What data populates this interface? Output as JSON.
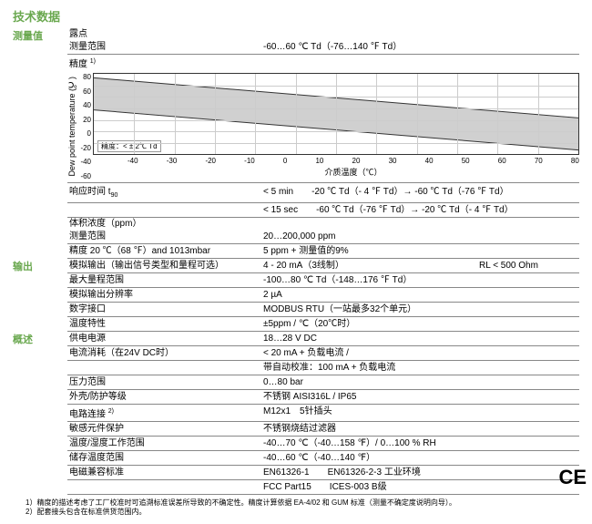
{
  "title": "技术数据",
  "sections": {
    "measure": {
      "header": "测量值",
      "dew_label": "露点",
      "rows": {
        "range": {
          "lbl": "测量范围",
          "val": "-60…60 ℃ Td（-76…140 ℉ Td）"
        },
        "accuracy": {
          "lbl": "精度 ",
          "sup": "1)"
        }
      },
      "resp_lbl": "响应时间 t",
      "resp_sub": "90",
      "resp_l1": "< 5 min　　-20 ℃ Td（- 4 ℉ Td）→ -60 ℃ Td（-76 ℉ Td）",
      "resp_l2": "< 15 sec　　-60 ℃ Td（-76 ℉ Td）→ -20 ℃ Td（- 4 ℉ Td）",
      "vol_lbl": "体积浓度（ppm）",
      "vol_range": {
        "lbl": "测量范围",
        "val": "20…200,000 ppm"
      },
      "vol_acc": {
        "lbl": "精度 20 ℃（68 ℉）and 1013mbar",
        "val": "5 ppm + 测量值的9%"
      }
    },
    "output": {
      "header": "输出",
      "rows": {
        "analog": {
          "lbl": "模拟输出（输出信号类型和量程可选）",
          "val": "4 - 20 mA（3线制）",
          "val2": "RL < 500 Ohm"
        },
        "maxfs": {
          "lbl": "最大量程范围",
          "val": "-100…80 ℃ Td（-148…176 ℉ Td）"
        },
        "res": {
          "lbl": "模拟输出分辨率",
          "val": "2 µA"
        },
        "digital": {
          "lbl": "数字接口",
          "val": "MODBUS RTU（一站最多32个单元）"
        },
        "temp": {
          "lbl": "温度特性",
          "val": "±5ppm / ℃（20℃时）"
        }
      }
    },
    "general": {
      "header": "概述",
      "rows": {
        "power": {
          "lbl": "供电电源",
          "val": "18…28 V DC"
        },
        "curr_l1": "< 20 mA + 负载电流 /",
        "curr_l2": "带自动校准：100 mA + 负载电流",
        "curr_lbl": "电流消耗（在24V DC时）",
        "press": {
          "lbl": "压力范围",
          "val": "0…80 bar"
        },
        "encl": {
          "lbl": "外壳/防护等级",
          "val": "不锈钢 AISI316L / IP65"
        },
        "elec": {
          "lbl": "电路连接 ",
          "sup": "2)",
          "val": "M12x1　5针插头"
        },
        "sens": {
          "lbl": "敏感元件保护",
          "val": "不锈钢烧结过滤器"
        },
        "oper": {
          "lbl": "温度/湿度工作范围",
          "val": "-40…70 ℃（-40…158 ℉）/ 0…100 % RH"
        },
        "stor": {
          "lbl": "储存温度范围",
          "val": "-40…60 ℃（-40…140 ℉）"
        },
        "emc": {
          "lbl": "电磁兼容标准",
          "val": "EN61326-1　　EN61326-2-3 工业环境",
          "val2b": "FCC Part15　　ICES-003 B级"
        }
      }
    }
  },
  "chart": {
    "ylabel": "Dew point temperature (℃)",
    "xlabel": "介质温度（℃）",
    "yticks": [
      "80",
      "60",
      "40",
      "20",
      "0",
      "-20",
      "-40",
      "-60"
    ],
    "xticks": [
      "-40",
      "-30",
      "-20",
      "-10",
      "0",
      "10",
      "20",
      "30",
      "40",
      "50",
      "60",
      "70",
      "80"
    ],
    "note": "精度：< ± 2℃ Td",
    "grid_color": "#cccccc",
    "band_color": "#b0b0b0",
    "upper_line": [
      [
        0,
        0.05
      ],
      [
        1,
        0.55
      ]
    ],
    "lower_line": [
      [
        0,
        0.45
      ],
      [
        1,
        0.95
      ]
    ],
    "band_poly": "0,4 350,50 350,86 0,40"
  },
  "footnotes": {
    "f1": "1）精度的描述考虑了工厂校准时可追溯标准误差所导致的不确定性。精度计算依据 EA-4/02 和 GUM 标准（测量不确定度说明向导）。",
    "f2": "2）配套接头包含在标准供货范围内。"
  },
  "ce": "CE"
}
